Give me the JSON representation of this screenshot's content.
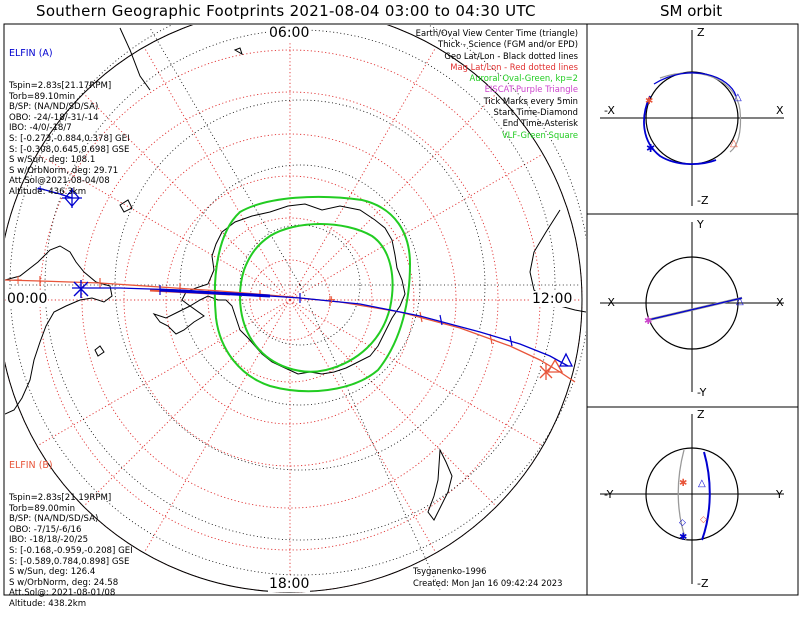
{
  "title": "Southern Geographic Footprints 2021-08-04 03:00 to 04:30 UTC",
  "orbit_title": "SM orbit",
  "colors": {
    "elfin_a": "#0000d0",
    "elfin_b": "#e8553a",
    "auroral": "#22cc22",
    "grid": "#e03030",
    "eiscat": "#cc44cc"
  },
  "hours": {
    "top": "06:00",
    "left": "00:00",
    "right": "12:00",
    "bottom": "18:00"
  },
  "elfin_a": {
    "name": "ELFIN (A)",
    "lines": [
      "Tspin=2.83s[21.17RPM]",
      "Torb=89.10min",
      "B/SP: (NA/ND/SD/SA)",
      "OBO: -24/-18/-31/-14",
      "IBO: -4/0/-18/7",
      "S: [-0.273,-0.884,0.378] GEI",
      "S: [-0.308,0.645,0.698] GSE",
      "S w/Sun, deg: 108.1",
      "S w/OrbNorm, deg: 29.71",
      "Att.Sol@2021-08-04/08",
      "Altitude: 436.3km"
    ]
  },
  "elfin_b": {
    "name": "ELFIN (B)",
    "lines": [
      "Tspin=2.83s[21.19RPM]",
      "Torb=89.00min",
      "B/SP: (NA/ND/SD/SA)",
      "OBO: -7/15/-6/16",
      "IBO: -18/18/-20/25",
      "S: [-0.168,-0.959,-0.208] GEI",
      "S: [-0.589,0.784,0.898] GSE",
      "S w/Sun, deg: 126.4",
      "S w/OrbNorm, deg: 24.58",
      "Att.Sol@: 2021-08-01/08",
      "Altitude: 438.2km"
    ]
  },
  "legend": {
    "items": [
      {
        "text": "Earth/Oval View Center Time (triangle)",
        "color": "#000000"
      },
      {
        "text": "Thick - Science (FGM and/or EPD)",
        "color": "#000000"
      },
      {
        "text": "Geo Lat/Lon - Black dotted lines",
        "color": "#000000"
      },
      {
        "text": "Mag Lat/Lon - Red dotted lines",
        "color": "#e03030"
      },
      {
        "text": "Auroral Oval-Green, kp=2",
        "color": "#22cc22"
      },
      {
        "text": "EISCAT-Purple Triangle",
        "color": "#cc44cc"
      },
      {
        "text": "Tick Marks every 5min",
        "color": "#000000"
      },
      {
        "text": "Start Time-Diamond",
        "color": "#000000"
      },
      {
        "text": "End Time-Asterisk",
        "color": "#000000"
      },
      {
        "text": "VLF-Green Square",
        "color": "#22cc22"
      }
    ]
  },
  "credit": {
    "model": "Tsyganenko-1996",
    "created": "Created: Mon Jan 16 09:42:24 2023"
  },
  "orbit_panels": [
    {
      "top": "Z",
      "bottom": "-Z",
      "left": "-X",
      "right": "X"
    },
    {
      "top": "Y",
      "bottom": "-Y",
      "left": "-X",
      "right": "X"
    },
    {
      "top": "Z",
      "bottom": "-Z",
      "left": "-Y",
      "right": "Y"
    }
  ]
}
